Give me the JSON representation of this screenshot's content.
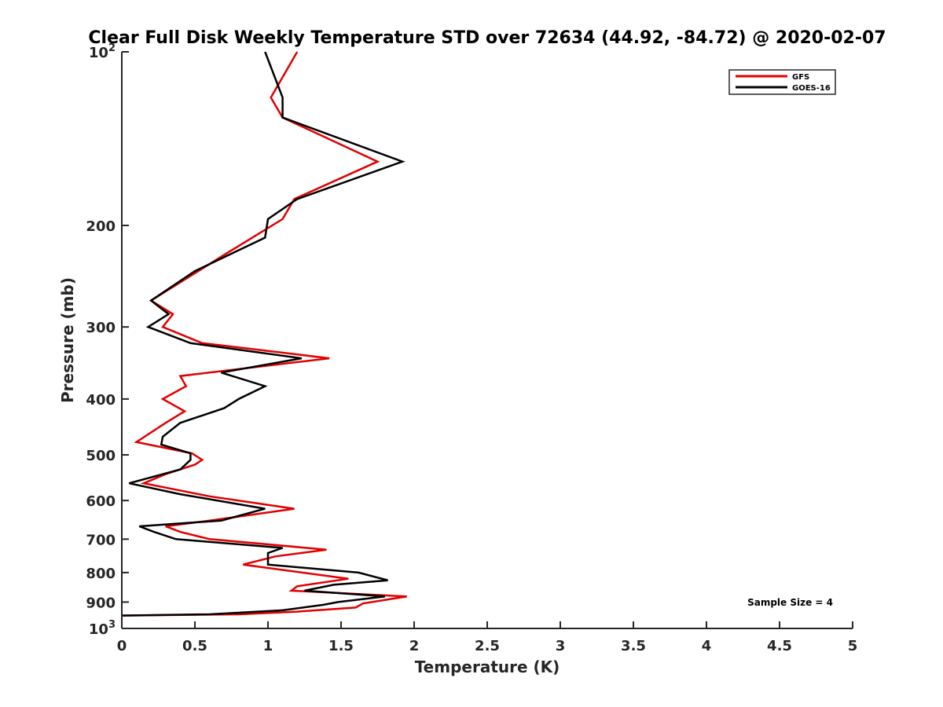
{
  "chart_data": {
    "type": "line",
    "title": "Clear Full Disk Weekly Temperature STD over 72634 (44.92, -84.72) @ 2020-02-07",
    "xlabel": "Temperature (K)",
    "ylabel": "Pressure (mb)",
    "xlim": [
      0,
      5
    ],
    "ylim": [
      100,
      1000
    ],
    "y_scale": "log",
    "y_reversed": true,
    "x_ticks": [
      0,
      0.5,
      1,
      1.5,
      2,
      2.5,
      3,
      3.5,
      4,
      4.5,
      5
    ],
    "x_tick_labels": [
      "0",
      "0.5",
      "1",
      "1.5",
      "2",
      "2.5",
      "3",
      "3.5",
      "4",
      "4.5",
      "5"
    ],
    "y_ticks": [
      100,
      200,
      300,
      400,
      500,
      600,
      700,
      800,
      900,
      1000
    ],
    "y_tick_labels": [
      {
        "base": "10",
        "exp": "2"
      },
      {
        "base": "200",
        "exp": ""
      },
      {
        "base": "300",
        "exp": ""
      },
      {
        "base": "400",
        "exp": ""
      },
      {
        "base": "500",
        "exp": ""
      },
      {
        "base": "600",
        "exp": ""
      },
      {
        "base": "700",
        "exp": ""
      },
      {
        "base": "800",
        "exp": ""
      },
      {
        "base": "900",
        "exp": ""
      },
      {
        "base": "10",
        "exp": "3"
      }
    ],
    "grid": false,
    "legend_position": "top-right",
    "annotation": "Sample Size = 4",
    "series": [
      {
        "name": "GFS",
        "color": "#e00000",
        "points": [
          [
            1.2,
            100
          ],
          [
            1.02,
            120
          ],
          [
            1.1,
            130
          ],
          [
            1.75,
            155
          ],
          [
            1.18,
            180
          ],
          [
            1.1,
            195
          ],
          [
            0.7,
            225
          ],
          [
            0.2,
            270
          ],
          [
            0.35,
            285
          ],
          [
            0.28,
            300
          ],
          [
            0.55,
            320
          ],
          [
            1.42,
            340
          ],
          [
            0.4,
            365
          ],
          [
            0.44,
            380
          ],
          [
            0.28,
            400
          ],
          [
            0.43,
            420
          ],
          [
            0.3,
            440
          ],
          [
            0.1,
            475
          ],
          [
            0.48,
            497
          ],
          [
            0.55,
            510
          ],
          [
            0.5,
            520
          ],
          [
            0.3,
            540
          ],
          [
            0.15,
            560
          ],
          [
            0.6,
            590
          ],
          [
            1.18,
            620
          ],
          [
            0.6,
            650
          ],
          [
            0.3,
            665
          ],
          [
            0.4,
            680
          ],
          [
            0.6,
            700
          ],
          [
            1.4,
            730
          ],
          [
            1.05,
            750
          ],
          [
            0.83,
            775
          ],
          [
            1.55,
            820
          ],
          [
            1.2,
            845
          ],
          [
            1.16,
            860
          ],
          [
            1.95,
            880
          ],
          [
            1.65,
            905
          ],
          [
            1.6,
            920
          ],
          [
            1.2,
            935
          ],
          [
            0.8,
            945
          ],
          [
            0.0,
            950
          ]
        ]
      },
      {
        "name": "GOES-16",
        "color": "#000000",
        "points": [
          [
            0.98,
            100
          ],
          [
            1.1,
            120
          ],
          [
            1.1,
            130
          ],
          [
            1.92,
            155
          ],
          [
            1.2,
            180
          ],
          [
            1.0,
            195
          ],
          [
            0.98,
            210
          ],
          [
            0.5,
            240
          ],
          [
            0.2,
            270
          ],
          [
            0.32,
            285
          ],
          [
            0.18,
            300
          ],
          [
            0.47,
            320
          ],
          [
            1.23,
            340
          ],
          [
            0.68,
            360
          ],
          [
            0.98,
            380
          ],
          [
            0.8,
            400
          ],
          [
            0.7,
            415
          ],
          [
            0.4,
            440
          ],
          [
            0.28,
            465
          ],
          [
            0.27,
            480
          ],
          [
            0.47,
            497
          ],
          [
            0.47,
            510
          ],
          [
            0.4,
            530
          ],
          [
            0.05,
            560
          ],
          [
            0.4,
            585
          ],
          [
            0.98,
            620
          ],
          [
            0.68,
            650
          ],
          [
            0.12,
            665
          ],
          [
            0.22,
            680
          ],
          [
            0.37,
            700
          ],
          [
            1.1,
            725
          ],
          [
            1.0,
            740
          ],
          [
            1.0,
            775
          ],
          [
            1.62,
            800
          ],
          [
            1.82,
            825
          ],
          [
            1.45,
            840
          ],
          [
            1.25,
            860
          ],
          [
            1.8,
            880
          ],
          [
            1.48,
            900
          ],
          [
            1.38,
            910
          ],
          [
            1.1,
            930
          ],
          [
            0.6,
            945
          ],
          [
            0.0,
            950
          ]
        ]
      }
    ]
  }
}
